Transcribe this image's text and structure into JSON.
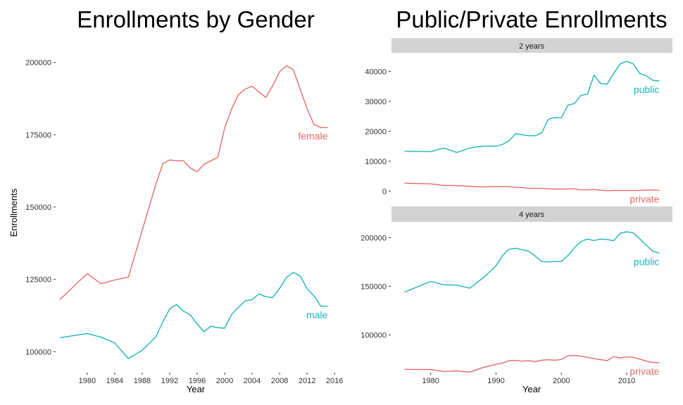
{
  "colors": {
    "red": "#E8696A",
    "teal": "#1FB4B7",
    "strip": "#D3D3D3",
    "tick": "#333333"
  },
  "chart_data": [
    {
      "type": "line",
      "title": "Enrollments by Gender",
      "xlabel": "Year",
      "ylabel": "Enrollments",
      "xlim": [
        1975.5,
        2016.5
      ],
      "ylim": [
        93000,
        207000
      ],
      "x_ticks": [
        1980,
        1984,
        1988,
        1992,
        1996,
        2000,
        2004,
        2008,
        2012,
        2016
      ],
      "y_ticks": [
        100000,
        125000,
        150000,
        175000,
        200000
      ],
      "y_tick_labels": [
        "100000",
        "125000",
        "150000",
        "175000",
        "200000"
      ],
      "grid": false,
      "legend": "none",
      "series": [
        {
          "name": "female",
          "label": "female",
          "color": "#E8696A",
          "x": [
            1976,
            1980,
            1982,
            1984,
            1986,
            1988,
            1990,
            1991,
            1992,
            1993,
            1994,
            1995,
            1996,
            1997,
            1998,
            1999,
            2000,
            2001,
            2002,
            2003,
            2004,
            2005,
            2006,
            2007,
            2008,
            2009,
            2010,
            2011,
            2012,
            2013,
            2014,
            2015
          ],
          "y": [
            118000,
            127000,
            123500,
            124800,
            125800,
            142000,
            158000,
            165000,
            166300,
            166000,
            166000,
            163500,
            162200,
            164800,
            166000,
            167200,
            177300,
            183800,
            188900,
            190800,
            191800,
            189800,
            187900,
            192000,
            196800,
            198900,
            197500,
            190800,
            184000,
            178600,
            177500,
            177500
          ]
        },
        {
          "name": "male",
          "label": "male",
          "color": "#1FB4B7",
          "x": [
            1976,
            1980,
            1982,
            1984,
            1986,
            1988,
            1990,
            1991,
            1992,
            1993,
            1994,
            1995,
            1996,
            1997,
            1998,
            1999,
            2000,
            2001,
            2002,
            2003,
            2004,
            2005,
            2006,
            2007,
            2008,
            2009,
            2010,
            2011,
            2012,
            2013,
            2014,
            2015
          ],
          "y": [
            104800,
            106300,
            105000,
            103000,
            97600,
            100500,
            105200,
            110300,
            114800,
            116300,
            114000,
            112700,
            109600,
            106900,
            108800,
            108300,
            108100,
            112800,
            115300,
            117600,
            118000,
            120000,
            119000,
            118700,
            121900,
            125700,
            127400,
            126200,
            121800,
            119300,
            115700,
            115700
          ]
        }
      ]
    },
    {
      "type": "line",
      "title": "Public/Private Enrollments",
      "xlabel": "Year",
      "grid": false,
      "legend": "none",
      "facets": [
        {
          "strip": "2 years",
          "xlim": [
            1974,
            2017
          ],
          "ylim": [
            -3000,
            45500
          ],
          "x_ticks": [
            1980,
            1990,
            2000,
            2010
          ],
          "y_ticks": [
            0,
            10000,
            20000,
            30000,
            40000
          ],
          "y_tick_labels": [
            "0",
            "10000",
            "20000",
            "30000",
            "40000"
          ],
          "series": [
            {
              "name": "public",
              "label": "public",
              "color": "#1FB4B7",
              "x": [
                1976,
                1980,
                1982,
                1984,
                1986,
                1988,
                1990,
                1991,
                1992,
                1993,
                1994,
                1995,
                1996,
                1997,
                1998,
                1999,
                2000,
                2001,
                2002,
                2003,
                2004,
                2005,
                2006,
                2007,
                2008,
                2009,
                2010,
                2011,
                2012,
                2013,
                2014,
                2015
              ],
              "y": [
                13300,
                13200,
                14400,
                12900,
                14400,
                15000,
                15000,
                15600,
                16800,
                19200,
                18800,
                18500,
                18500,
                19500,
                24000,
                24600,
                24500,
                28700,
                29300,
                32000,
                32400,
                38800,
                36000,
                35700,
                39300,
                42500,
                43400,
                42500,
                39300,
                38500,
                37000,
                36800
              ]
            },
            {
              "name": "private",
              "label": "private",
              "color": "#E8696A",
              "x": [
                1976,
                1980,
                1982,
                1984,
                1986,
                1988,
                1990,
                1992,
                1993,
                1994,
                1995,
                1996,
                1997,
                1998,
                1999,
                2000,
                2001,
                2002,
                2003,
                2004,
                2005,
                2006,
                2007,
                2008,
                2009,
                2010,
                2011,
                2012,
                2013,
                2014,
                2015
              ],
              "y": [
                2600,
                2400,
                1900,
                1800,
                1600,
                1400,
                1500,
                1500,
                1200,
                1200,
                900,
                900,
                900,
                800,
                700,
                700,
                700,
                800,
                400,
                400,
                500,
                300,
                100,
                200,
                200,
                200,
                200,
                200,
                300,
                400,
                200
              ]
            }
          ]
        },
        {
          "strip": "4 years",
          "xlim": [
            1974,
            2017
          ],
          "ylim": [
            62000,
            214000
          ],
          "x_ticks": [
            1980,
            1990,
            2000,
            2010
          ],
          "x_tick_labels": [
            "1980",
            "1990",
            "2000",
            "2010"
          ],
          "y_ticks": [
            100000,
            150000,
            200000
          ],
          "y_tick_labels": [
            "100000",
            "150000",
            "200000"
          ],
          "series": [
            {
              "name": "public",
              "label": "public",
              "color": "#1FB4B7",
              "x": [
                1976,
                1980,
                1982,
                1984,
                1986,
                1988,
                1990,
                1991,
                1992,
                1993,
                1994,
                1995,
                1996,
                1997,
                1998,
                1999,
                2000,
                2001,
                2002,
                2003,
                2004,
                2005,
                2006,
                2007,
                2008,
                2009,
                2010,
                2011,
                2012,
                2013,
                2014,
                2015
              ],
              "y": [
                144000,
                155000,
                151500,
                151200,
                148000,
                158500,
                171000,
                181500,
                188000,
                189000,
                187500,
                186000,
                181000,
                175500,
                175000,
                175500,
                175500,
                181500,
                189500,
                196000,
                198500,
                197000,
                198500,
                198000,
                196800,
                204500,
                206000,
                204800,
                198800,
                192000,
                186000,
                184000
              ]
            },
            {
              "name": "private",
              "label": "private",
              "color": "#E8696A",
              "x": [
                1976,
                1980,
                1982,
                1984,
                1986,
                1988,
                1990,
                1991,
                1992,
                1993,
                1994,
                1995,
                1996,
                1997,
                1998,
                1999,
                2000,
                2001,
                2002,
                2003,
                2004,
                2005,
                2006,
                2007,
                2008,
                2009,
                2010,
                2011,
                2012,
                2013,
                2014,
                2015
              ],
              "y": [
                64600,
                64400,
                62300,
                63000,
                61800,
                66500,
                69800,
                71000,
                73600,
                73900,
                73000,
                73500,
                72400,
                74000,
                74500,
                74000,
                74800,
                78500,
                79000,
                78000,
                77000,
                75600,
                74600,
                73600,
                77700,
                76400,
                77400,
                77000,
                75200,
                73000,
                71700,
                71300
              ]
            }
          ]
        }
      ]
    }
  ]
}
